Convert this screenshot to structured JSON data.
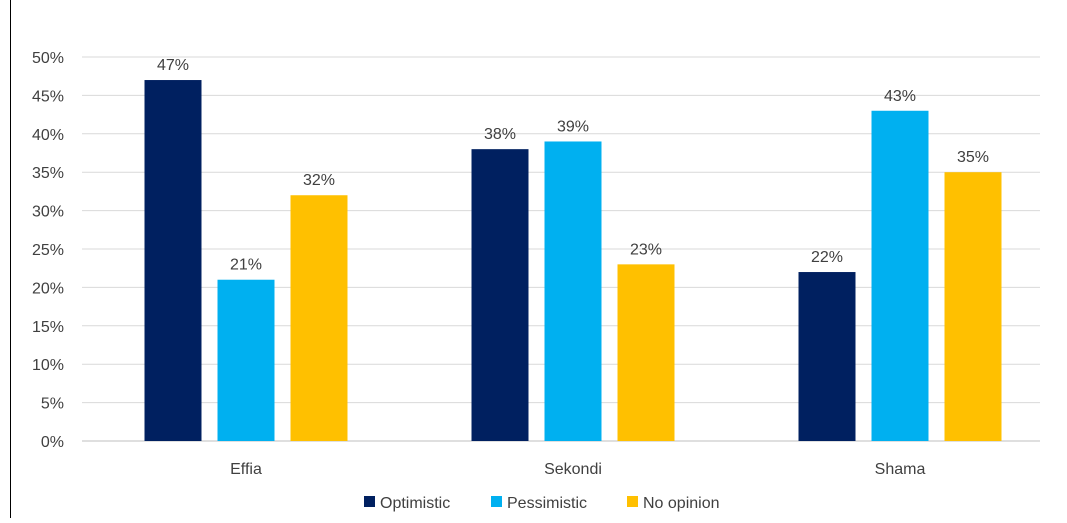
{
  "chart_data": {
    "type": "bar",
    "categories": [
      "Effia",
      "Sekondi",
      "Shama"
    ],
    "series": [
      {
        "name": "Optimistic",
        "color": "#002060",
        "values": [
          47,
          38,
          22
        ]
      },
      {
        "name": "Pessimistic",
        "color": "#00B0F0",
        "values": [
          21,
          39,
          43
        ]
      },
      {
        "name": "No opinion",
        "color": "#FFC000",
        "values": [
          32,
          23,
          35
        ]
      }
    ],
    "data_labels": [
      [
        "47%",
        "38%",
        "22%"
      ],
      [
        "21%",
        "39%",
        "43%"
      ],
      [
        "32%",
        "23%",
        "35%"
      ]
    ],
    "yticks": [
      0,
      5,
      10,
      15,
      20,
      25,
      30,
      35,
      40,
      45,
      50
    ],
    "ytick_labels": [
      "0%",
      "5%",
      "10%",
      "15%",
      "20%",
      "25%",
      "30%",
      "35%",
      "40%",
      "45%",
      "50%"
    ],
    "ylim": [
      0,
      50
    ],
    "grid": true,
    "legend_position": "bottom",
    "title": "",
    "xlabel": "",
    "ylabel": ""
  }
}
